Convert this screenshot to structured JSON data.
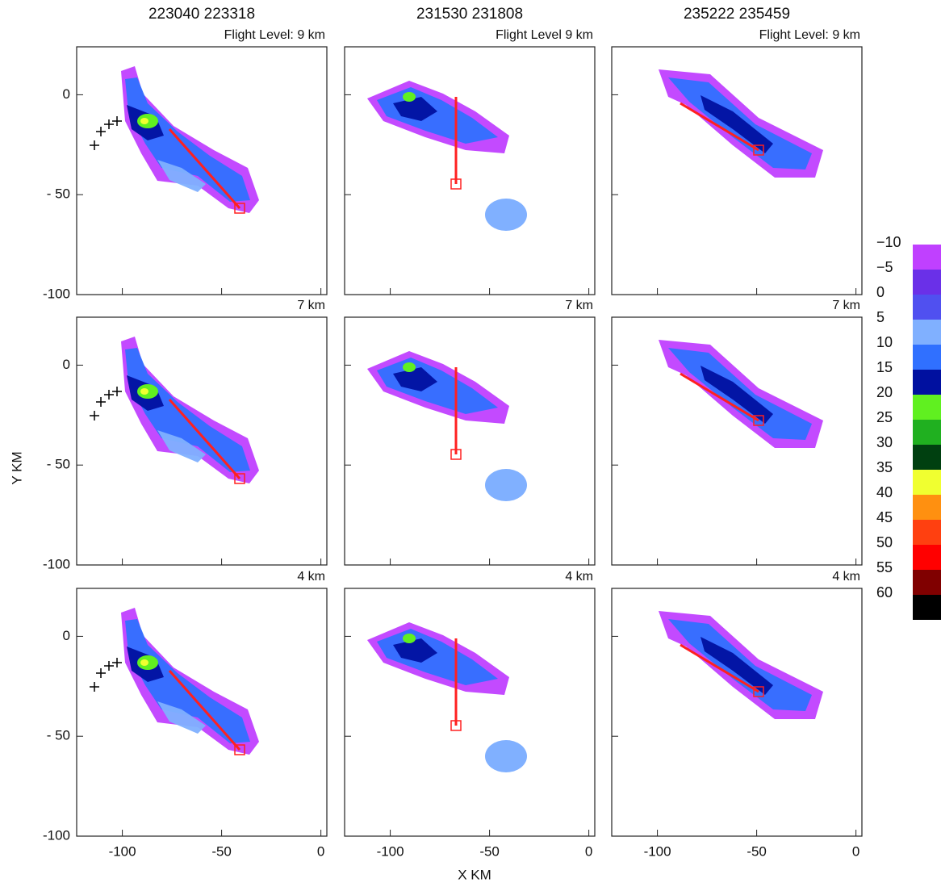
{
  "chart_data": {
    "type": "radar-panels",
    "x_label": "X  KM",
    "y_label": "Y  KM",
    "column_titles": [
      "223040   223318",
      "231530   231808",
      "235222   235459"
    ],
    "panel_labels": [
      [
        "Flight Level:  9  km",
        "Flight Level  9  km",
        "Flight Level:  9  km"
      ],
      [
        "7  km",
        "7  km",
        "7  km"
      ],
      [
        "4  km",
        "4  km",
        "4  km"
      ]
    ],
    "xlim": [
      -123,
      3
    ],
    "xticks": [
      -100,
      -50,
      0
    ],
    "ylim": [
      -100,
      24
    ],
    "yticks": [
      -100,
      {
        "value": -50,
        "label": "- 50"
      },
      0
    ],
    "colorbar": {
      "levels": [
        {
          "value": -10,
          "label": "−10"
        },
        {
          "value": -5,
          "label": "−5"
        },
        0,
        5,
        10,
        15,
        20,
        25,
        30,
        35,
        40,
        45,
        50,
        55,
        60
      ],
      "colors": [
        "#c040ff",
        "#6a30e8",
        "#5050f0",
        "#80b0ff",
        "#3070ff",
        "#0010a0",
        "#60f020",
        "#20b020",
        "#004010",
        "#f0ff30",
        "#ff9010",
        "#ff4010",
        "#ff0000",
        "#800000",
        "#000000"
      ]
    }
  }
}
